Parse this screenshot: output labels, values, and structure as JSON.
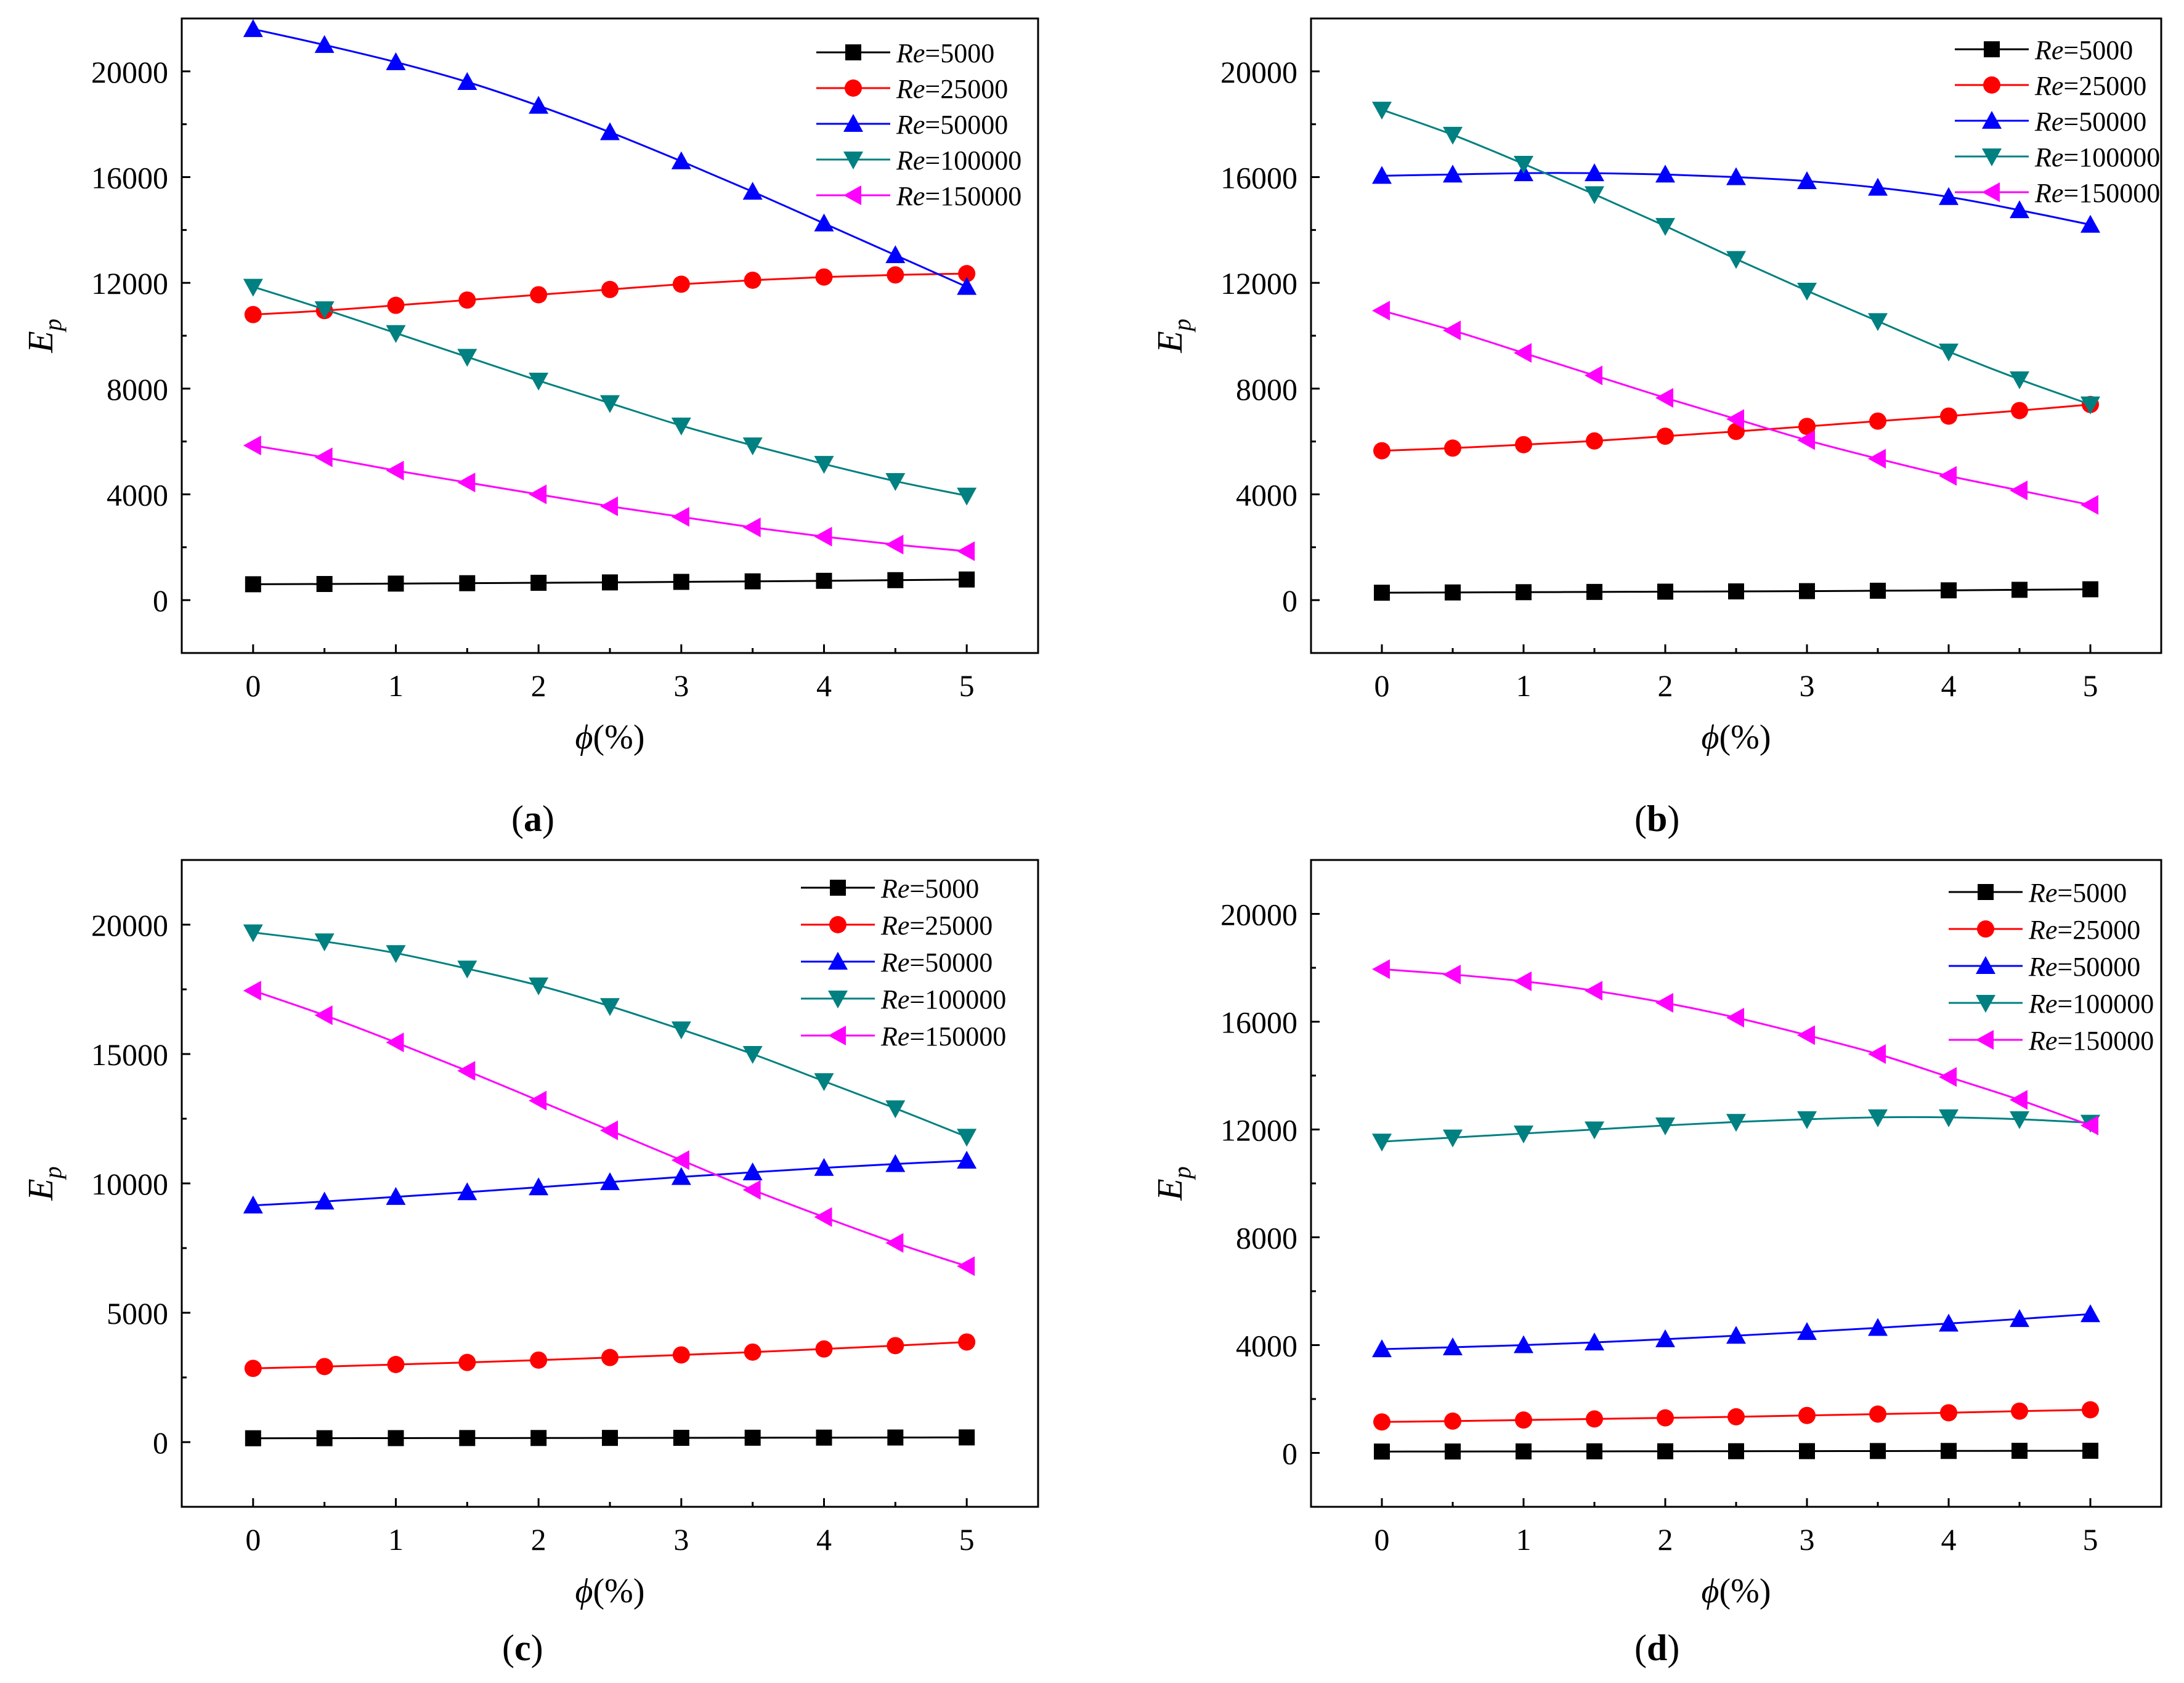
{
  "figure": {
    "panel_labels": [
      "(a)",
      "(b)",
      "(c)",
      "(d)"
    ],
    "panel_letters": [
      "a",
      "b",
      "c",
      "d"
    ]
  },
  "colors": {
    "Re=5000": "#000000",
    "Re=25000": "#ff0000",
    "Re=50000": "#0000ff",
    "Re=100000": "#008080",
    "Re=150000": "#ff00ff"
  },
  "chart_data": [
    {
      "panel": "a",
      "type": "line",
      "xlabel": "ϕ(%)",
      "ylabel": "Ep",
      "xlim": [
        -0.5,
        5.5
      ],
      "ylim": [
        -2000,
        22000
      ],
      "xticks": [
        0,
        1,
        2,
        3,
        4,
        5
      ],
      "yticks": [
        0,
        4000,
        8000,
        12000,
        16000,
        20000
      ],
      "ytick_labels": [
        "0",
        "4000",
        "8000",
        "12000",
        "16000",
        "20000"
      ],
      "x": [
        0,
        0.5,
        1,
        1.5,
        2,
        2.5,
        3,
        3.5,
        4,
        4.5,
        5
      ],
      "legend_position": "top-right",
      "series": [
        {
          "name": "Re=5000",
          "re": "Re",
          "num": "=5000",
          "marker": "square",
          "values": [
            600,
            610,
            625,
            640,
            655,
            670,
            690,
            710,
            730,
            755,
            780
          ]
        },
        {
          "name": "Re=25000",
          "re": "Re",
          "num": "=25000",
          "marker": "circle",
          "values": [
            10800,
            10950,
            11150,
            11350,
            11550,
            11750,
            11950,
            12100,
            12220,
            12300,
            12350
          ]
        },
        {
          "name": "Re=50000",
          "re": "Re",
          "num": "=50000",
          "marker": "triangle-up",
          "values": [
            21600,
            21000,
            20350,
            19600,
            18700,
            17700,
            16600,
            15450,
            14250,
            13050,
            11850
          ]
        },
        {
          "name": "Re=100000",
          "re": "Re",
          "num": "=100000",
          "marker": "triangle-down",
          "values": [
            11850,
            11000,
            10100,
            9200,
            8300,
            7450,
            6600,
            5850,
            5150,
            4500,
            3950
          ]
        },
        {
          "name": "Re=150000",
          "re": "Re",
          "num": "=150000",
          "marker": "triangle-left",
          "values": [
            5850,
            5400,
            4900,
            4450,
            4000,
            3550,
            3150,
            2750,
            2400,
            2100,
            1850
          ]
        }
      ]
    },
    {
      "panel": "b",
      "type": "line",
      "xlabel": "ϕ(%)",
      "ylabel": "Ep",
      "xlim": [
        -0.5,
        5.5
      ],
      "ylim": [
        -2000,
        22000
      ],
      "xticks": [
        0,
        1,
        2,
        3,
        4,
        5
      ],
      "yticks": [
        0,
        4000,
        8000,
        12000,
        16000,
        20000
      ],
      "ytick_labels": [
        "0",
        "4000",
        "8000",
        "12000",
        "16000",
        "20000"
      ],
      "x": [
        0,
        0.5,
        1,
        1.5,
        2,
        2.5,
        3,
        3.5,
        4,
        4.5,
        5
      ],
      "legend_position": "top-right",
      "series": [
        {
          "name": "Re=5000",
          "re": "Re",
          "num": "=5000",
          "marker": "square",
          "values": [
            280,
            290,
            300,
            310,
            320,
            330,
            340,
            355,
            370,
            390,
            410
          ]
        },
        {
          "name": "Re=25000",
          "re": "Re",
          "num": "=25000",
          "marker": "circle",
          "values": [
            5650,
            5750,
            5880,
            6020,
            6200,
            6380,
            6570,
            6770,
            6960,
            7170,
            7400
          ]
        },
        {
          "name": "Re=50000",
          "re": "Re",
          "num": "=50000",
          "marker": "triangle-up",
          "values": [
            16050,
            16100,
            16150,
            16150,
            16100,
            16000,
            15850,
            15600,
            15250,
            14750,
            14200
          ]
        },
        {
          "name": "Re=100000",
          "re": "Re",
          "num": "=100000",
          "marker": "triangle-down",
          "values": [
            18550,
            17600,
            16500,
            15350,
            14150,
            12900,
            11700,
            10550,
            9400,
            8350,
            7400
          ]
        },
        {
          "name": "Re=150000",
          "re": "Re",
          "num": "=150000",
          "marker": "triangle-left",
          "values": [
            10950,
            10200,
            9350,
            8500,
            7650,
            6850,
            6050,
            5350,
            4700,
            4150,
            3600
          ]
        }
      ]
    },
    {
      "panel": "c",
      "type": "line",
      "xlabel": "ϕ(%)",
      "ylabel": "Ep",
      "xlim": [
        -0.5,
        5.5
      ],
      "ylim": [
        -2500,
        22500
      ],
      "xticks": [
        0,
        1,
        2,
        3,
        4,
        5
      ],
      "yticks": [
        0,
        5000,
        10000,
        15000,
        20000
      ],
      "ytick_labels": [
        "0",
        "5000",
        "10000",
        "15000",
        "20000"
      ],
      "x": [
        0,
        0.5,
        1,
        1.5,
        2,
        2.5,
        3,
        3.5,
        4,
        4.5,
        5
      ],
      "legend_position": "top-right",
      "series": [
        {
          "name": "Re=5000",
          "re": "Re",
          "num": "=5000",
          "marker": "square",
          "values": [
            150,
            152,
            155,
            158,
            160,
            163,
            166,
            170,
            174,
            178,
            182
          ]
        },
        {
          "name": "Re=25000",
          "re": "Re",
          "num": "=25000",
          "marker": "circle",
          "values": [
            2850,
            2920,
            3000,
            3080,
            3170,
            3270,
            3370,
            3480,
            3600,
            3730,
            3870
          ]
        },
        {
          "name": "Re=50000",
          "re": "Re",
          "num": "=50000",
          "marker": "triangle-up",
          "values": [
            9150,
            9300,
            9480,
            9660,
            9850,
            10050,
            10250,
            10430,
            10600,
            10750,
            10880
          ]
        },
        {
          "name": "Re=100000",
          "re": "Re",
          "num": "=100000",
          "marker": "triangle-down",
          "values": [
            19700,
            19350,
            18900,
            18300,
            17650,
            16850,
            15950,
            15000,
            13950,
            12900,
            11800
          ]
        },
        {
          "name": "Re=150000",
          "re": "Re",
          "num": "=150000",
          "marker": "triangle-left",
          "values": [
            17450,
            16500,
            15450,
            14350,
            13200,
            12050,
            10900,
            9750,
            8700,
            7700,
            6800
          ]
        }
      ]
    },
    {
      "panel": "d",
      "type": "line",
      "xlabel": "ϕ(%)",
      "ylabel": "Ep",
      "xlim": [
        -0.5,
        5.5
      ],
      "ylim": [
        -2000,
        22000
      ],
      "xticks": [
        0,
        1,
        2,
        3,
        4,
        5
      ],
      "yticks": [
        0,
        4000,
        8000,
        12000,
        16000,
        20000
      ],
      "ytick_labels": [
        "0",
        "4000",
        "8000",
        "12000",
        "16000",
        "20000"
      ],
      "x": [
        0,
        0.5,
        1,
        1.5,
        2,
        2.5,
        3,
        3.5,
        4,
        4.5,
        5
      ],
      "legend_position": "top-right",
      "series": [
        {
          "name": "Re=5000",
          "re": "Re",
          "num": "=5000",
          "marker": "square",
          "values": [
            50,
            52,
            55,
            58,
            60,
            63,
            66,
            70,
            73,
            77,
            80
          ]
        },
        {
          "name": "Re=25000",
          "re": "Re",
          "num": "=25000",
          "marker": "circle",
          "values": [
            1150,
            1180,
            1220,
            1260,
            1300,
            1340,
            1390,
            1440,
            1490,
            1550,
            1600
          ]
        },
        {
          "name": "Re=50000",
          "re": "Re",
          "num": "=50000",
          "marker": "triangle-up",
          "values": [
            3850,
            3920,
            4000,
            4100,
            4220,
            4350,
            4490,
            4640,
            4800,
            4970,
            5150
          ]
        },
        {
          "name": "Re=100000",
          "re": "Re",
          "num": "=100000",
          "marker": "triangle-down",
          "values": [
            11550,
            11700,
            11850,
            12000,
            12150,
            12280,
            12380,
            12450,
            12450,
            12380,
            12250
          ]
        },
        {
          "name": "Re=150000",
          "re": "Re",
          "num": "=150000",
          "marker": "triangle-left",
          "values": [
            17950,
            17750,
            17500,
            17150,
            16700,
            16150,
            15500,
            14800,
            13950,
            13100,
            12150
          ]
        }
      ]
    }
  ]
}
